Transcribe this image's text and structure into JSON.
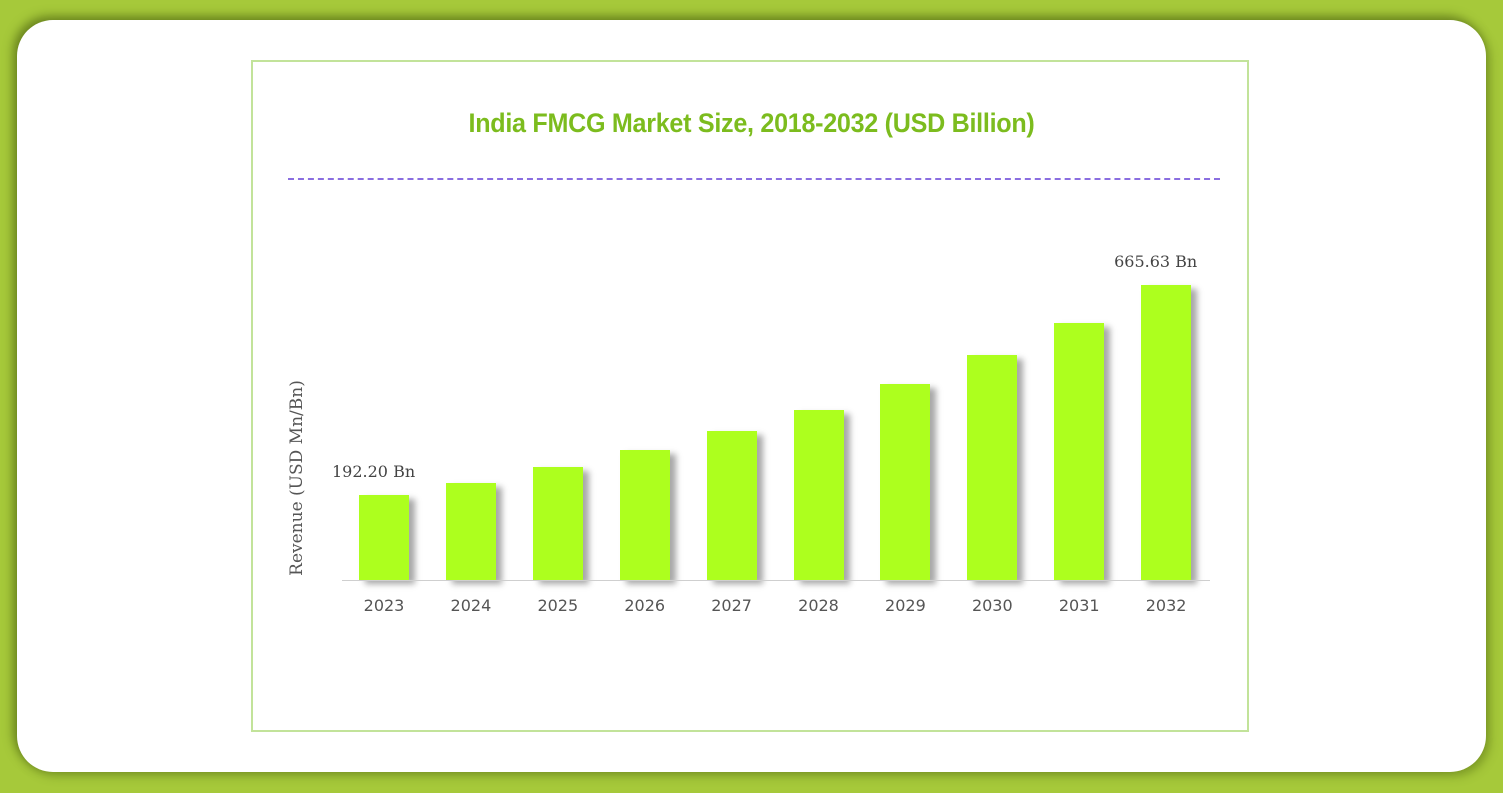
{
  "colors": {
    "background": "#a6c93a",
    "card": "#ffffff",
    "frame_border": "#c2e39a",
    "title": "#7cbc1e",
    "divider": "#8a6ee0",
    "bar": "#adff1e",
    "text": "#555555"
  },
  "chart_data": {
    "type": "bar",
    "title": "India FMCG Market Size, 2018-2032 (USD Billion)",
    "xlabel": "",
    "ylabel": "Revenue (USD Mn/Bn)",
    "categories": [
      "2023",
      "2024",
      "2025",
      "2026",
      "2027",
      "2028",
      "2029",
      "2030",
      "2031",
      "2032"
    ],
    "values": [
      192.2,
      219,
      255,
      294,
      337,
      384,
      443,
      508,
      581,
      665.63
    ],
    "data_labels": [
      {
        "category": "2023",
        "text": "192.20 Bn"
      },
      {
        "category": "2032",
        "text": "665.63 Bn"
      }
    ],
    "ylim": [
      0,
      700
    ],
    "grid": false,
    "legend": null
  }
}
